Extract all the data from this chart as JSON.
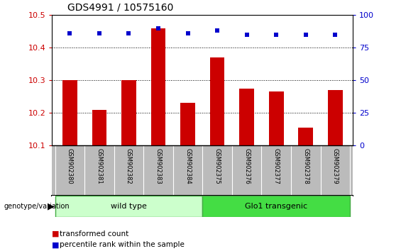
{
  "title": "GDS4991 / 10575160",
  "samples": [
    "GSM902380",
    "GSM902381",
    "GSM902382",
    "GSM902383",
    "GSM902384",
    "GSM902375",
    "GSM902376",
    "GSM902377",
    "GSM902378",
    "GSM902379"
  ],
  "red_values": [
    10.3,
    10.21,
    10.3,
    10.46,
    10.23,
    10.37,
    10.275,
    10.265,
    10.155,
    10.27
  ],
  "blue_values": [
    86,
    86,
    86,
    90,
    86,
    88,
    85,
    85,
    85,
    85
  ],
  "ylim_left": [
    10.1,
    10.5
  ],
  "ylim_right": [
    0,
    100
  ],
  "yticks_left": [
    10.1,
    10.2,
    10.3,
    10.4,
    10.5
  ],
  "yticks_right": [
    0,
    25,
    50,
    75,
    100
  ],
  "groups": [
    {
      "label": "wild type",
      "indices": [
        0,
        1,
        2,
        3,
        4
      ],
      "color": "#ccffcc",
      "edge_color": "#44aa44"
    },
    {
      "label": "Glo1 transgenic",
      "indices": [
        5,
        6,
        7,
        8,
        9
      ],
      "color": "#44dd44",
      "edge_color": "#44aa44"
    }
  ],
  "genotype_label": "genotype/variation",
  "bar_color": "#cc0000",
  "dot_color": "#0000cc",
  "bar_width": 0.5,
  "legend_items": [
    {
      "color": "#cc0000",
      "label": "transformed count"
    },
    {
      "color": "#0000cc",
      "label": "percentile rank within the sample"
    }
  ],
  "tick_label_color_left": "#cc0000",
  "tick_label_color_right": "#0000cc",
  "background_color": "#ffffff",
  "plot_bg_color": "#ffffff",
  "xlabel_area_color": "#bbbbbb",
  "title_fontsize": 10
}
